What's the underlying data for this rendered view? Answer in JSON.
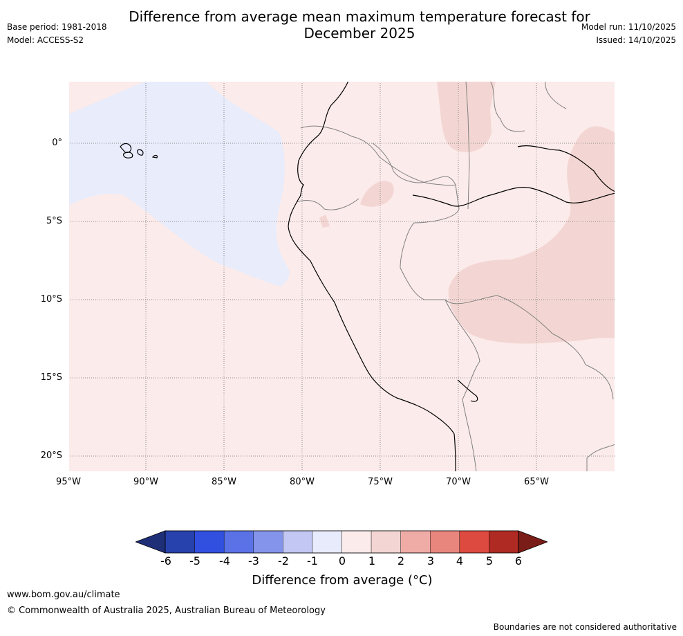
{
  "header": {
    "title_line1": "Difference from average mean maximum temperature forecast for",
    "title_line2": "December 2025",
    "base_period": "Base period: 1981-2018",
    "model": "Model: ACCESS-S2",
    "model_run": "Model run: 11/10/2025",
    "issued": "Issued: 14/10/2025"
  },
  "map": {
    "lat_labels": [
      "0°",
      "5°S",
      "10°S",
      "15°S",
      "20°S"
    ],
    "lon_labels": [
      "95°W",
      "90°W",
      "85°W",
      "80°W",
      "75°W",
      "70°W",
      "65°W"
    ],
    "colors": {
      "ocean_pale_red": "#fbebea",
      "pale_blue": "#e8ecfb",
      "light_pink": "#f3d6d3",
      "coast": "#000000",
      "border": "#808080",
      "grid": "#888888"
    }
  },
  "colorbar": {
    "tick_labels": [
      "-6",
      "-5",
      "-4",
      "-3",
      "-2",
      "-1",
      "0",
      "1",
      "2",
      "3",
      "4",
      "5",
      "6"
    ],
    "colors": [
      "#2741ad",
      "#3250e0",
      "#5a72e6",
      "#8494ea",
      "#c2c8f3",
      "#e8ebfb",
      "#fbebea",
      "#f3d6d3",
      "#efaca6",
      "#e8867e",
      "#dd4a3f",
      "#ae2a22"
    ],
    "low_extend_color": "#1e2f78",
    "high_extend_color": "#7a1c17",
    "title": "Difference from average (°C)"
  },
  "footer": {
    "website": "www.bom.gov.au/climate",
    "copyright": "© Commonwealth of Australia 2025, Australian Bureau of Meteorology",
    "disclaimer": "Boundaries are not considered authoritative"
  }
}
